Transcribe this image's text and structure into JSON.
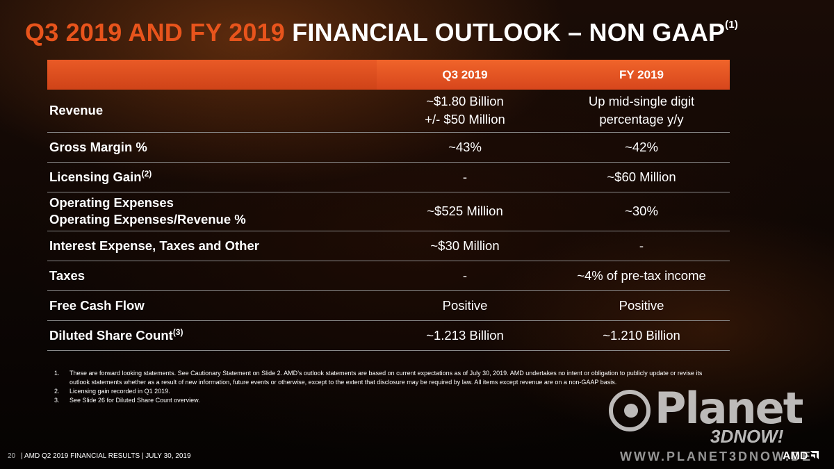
{
  "title": {
    "accent": "Q3 2019 AND FY 2019",
    "rest": "FINANCIAL OUTLOOK – NON GAAP",
    "sup": "(1)"
  },
  "table": {
    "headers": [
      "",
      "Q3 2019",
      "FY 2019"
    ],
    "rows": [
      {
        "label": "Revenue",
        "q3": [
          "~$1.80 Billion",
          "+/- $50 Million"
        ],
        "fy": [
          "Up mid-single digit",
          "percentage y/y"
        ]
      },
      {
        "label": "Gross Margin %",
        "q3": "~43%",
        "fy": "~42%"
      },
      {
        "label": "Licensing Gain",
        "sup": "(2)",
        "q3": "-",
        "fy": "~$60 Million"
      },
      {
        "label": [
          "Operating Expenses",
          "Operating Expenses/Revenue %"
        ],
        "q3": "~$525 Million",
        "fy": "~30%"
      },
      {
        "label": "Interest Expense, Taxes and Other",
        "q3": "~$30 Million",
        "fy": "-"
      },
      {
        "label": "Taxes",
        "q3": "-",
        "fy": "~4% of pre-tax income"
      },
      {
        "label": "Free Cash Flow",
        "q3": "Positive",
        "fy": "Positive"
      },
      {
        "label": "Diluted Share Count",
        "sup": "(3)",
        "q3": "~1.213 Billion",
        "fy": "~1.210 Billion"
      }
    ]
  },
  "notes": [
    {
      "num": "1.",
      "text": "These are forward looking statements.  See Cautionary Statement on Slide 2. AMD’s outlook statements are based on current expectations as of July 30, 2019.  AMD undertakes no intent or obligation to publicly update or revise its outlook statements whether as a result of new information, future events or otherwise, except to the extent that disclosure may be required by law.   All items except revenue are on a non-GAAP basis."
    },
    {
      "num": "2.",
      "text": "Licensing gain recorded in Q1 2019."
    },
    {
      "num": "3.",
      "text": "See Slide 26 for Diluted Share Count overview."
    }
  ],
  "footer": {
    "page": "20",
    "text": "| AMD Q2 2019 FINANCIAL RESULTS | JULY 30, 2019"
  },
  "watermark": {
    "word": "Planet",
    "sub": "3DNOW!",
    "url": "WWW.PLANET3DNOW.DE"
  },
  "logo": "AMD"
}
